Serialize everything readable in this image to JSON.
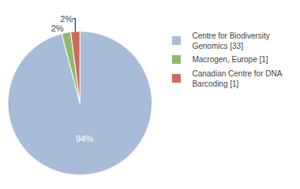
{
  "chart_data": {
    "type": "pie",
    "categories": [
      "Centre for Biodiversity\nGenomics [33]",
      "Macrogen, Europe [1]",
      "Canadian Centre for DNA\nBarcoding [1]"
    ],
    "values": [
      94,
      2,
      2
    ],
    "value_labels": [
      "94%",
      "2%",
      "2%"
    ],
    "colors": [
      "#a8bcd8",
      "#8fba6e",
      "#cc6b5a"
    ],
    "data_labels": true,
    "legend": "right"
  }
}
